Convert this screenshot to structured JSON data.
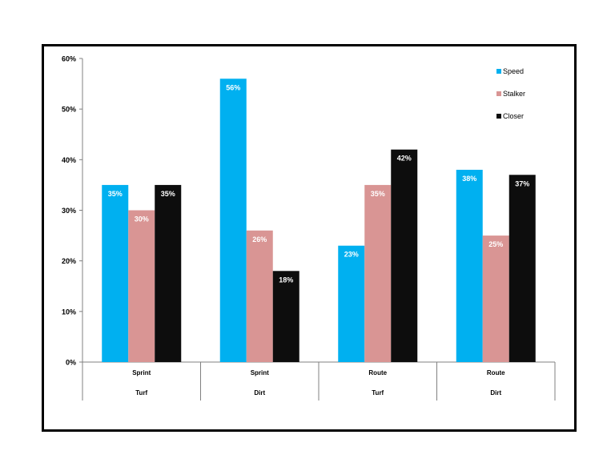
{
  "chart_data": {
    "type": "bar",
    "categories": [
      {
        "top": "Sprint",
        "bottom": "Turf"
      },
      {
        "top": "Sprint",
        "bottom": "Dirt"
      },
      {
        "top": "Route",
        "bottom": "Turf"
      },
      {
        "top": "Route",
        "bottom": "Dirt"
      }
    ],
    "series": [
      {
        "name": "Speed",
        "color": "#00b0f0",
        "values": [
          35,
          56,
          23,
          38
        ]
      },
      {
        "name": "Stalker",
        "color": "#d99594",
        "values": [
          30,
          26,
          35,
          25
        ]
      },
      {
        "name": "Closer",
        "color": "#0d0d0d",
        "values": [
          35,
          18,
          42,
          37
        ]
      }
    ],
    "ylim": [
      0,
      60
    ],
    "yticks": [
      "0%",
      "10%",
      "20%",
      "30%",
      "40%",
      "50%",
      "60%"
    ],
    "value_format": "%",
    "title": "",
    "xlabel": "",
    "ylabel": "",
    "legend_position": "top-right",
    "grid": false
  }
}
